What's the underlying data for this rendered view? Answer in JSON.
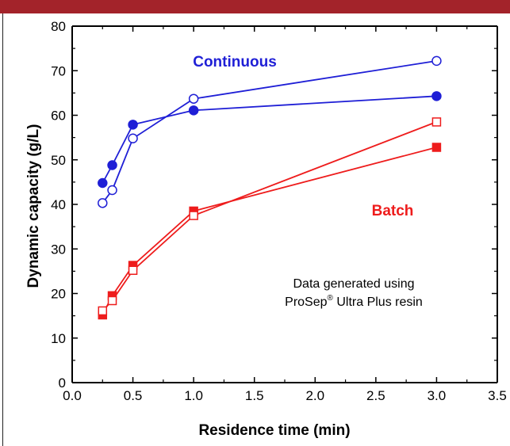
{
  "colors": {
    "top_bar": "#a3232a",
    "continuous": "#1f1fd6",
    "batch": "#ee1c1c",
    "axis": "#000000"
  },
  "chart_data": {
    "type": "line",
    "title": "",
    "xlabel": "Residence time (min)",
    "ylabel": "Dynamic capacity (g/L)",
    "xlim": [
      0.0,
      3.5
    ],
    "ylim": [
      0,
      80
    ],
    "x_ticks": [
      "0.0",
      "0.5",
      "1.0",
      "1.5",
      "2.0",
      "2.5",
      "3.0",
      "3.5"
    ],
    "y_ticks": [
      "0",
      "10",
      "20",
      "30",
      "40",
      "50",
      "60",
      "70",
      "80"
    ],
    "grid": false,
    "legend": "none",
    "group_labels": {
      "continuous": "Continuous",
      "batch": "Batch"
    },
    "annotation": {
      "line1": "Data generated using",
      "line2_before": "ProSep",
      "line2_sup": "®",
      "line2_after": " Ultra Plus resin"
    },
    "series": [
      {
        "group": "continuous",
        "marker": "circle-filled",
        "x": [
          0.25,
          0.33,
          0.5,
          1.0,
          3.0
        ],
        "y": [
          44.8,
          48.8,
          57.9,
          61.1,
          64.3
        ]
      },
      {
        "group": "continuous",
        "marker": "circle-open",
        "x": [
          0.25,
          0.33,
          0.5,
          1.0,
          3.0
        ],
        "y": [
          40.3,
          43.2,
          54.8,
          63.7,
          72.2
        ]
      },
      {
        "group": "batch",
        "marker": "square-filled",
        "x": [
          0.25,
          0.33,
          0.5,
          1.0,
          3.0
        ],
        "y": [
          15.2,
          19.5,
          26.3,
          38.5,
          52.8
        ]
      },
      {
        "group": "batch",
        "marker": "square-open",
        "x": [
          0.25,
          0.33,
          0.5,
          1.0,
          3.0
        ],
        "y": [
          16.1,
          18.4,
          25.2,
          37.5,
          58.5
        ]
      }
    ]
  }
}
